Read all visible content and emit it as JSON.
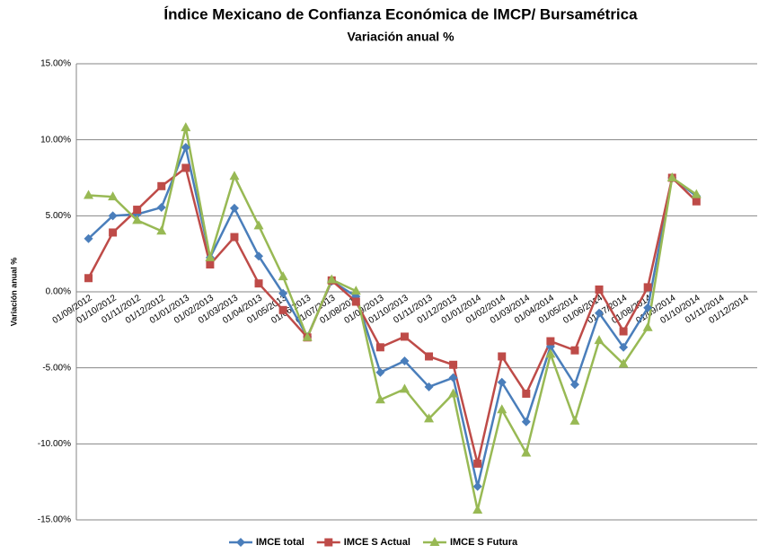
{
  "chart_data": {
    "type": "line",
    "title": "Índice Mexicano de Confianza Económica de lMCP/ Bursamétrica",
    "subtitle": "Variación anual %",
    "y_label": "Variación anual %",
    "categories": [
      "01/09/2012",
      "01/10/2012",
      "01/11/2012",
      "01/12/2012",
      "01/01/2013",
      "01/02/2013",
      "01/03/2013",
      "01/04/2013",
      "01/05/2013",
      "01/06/2013",
      "01/07/2013",
      "01/08/2013",
      "01/09/2013",
      "01/10/2013",
      "01/11/2013",
      "01/12/2013",
      "01/01/2014",
      "01/02/2014",
      "01/03/2014",
      "01/04/2014",
      "01/05/2014",
      "01/06/2014",
      "01/07/2014",
      "01/08/2014",
      "01/09/2014",
      "01/10/2014",
      "01/11/2014",
      "01/12/2014"
    ],
    "series": [
      {
        "name": "IMCE total",
        "color": "#4a7ebb",
        "marker": "diamond",
        "values": [
          3.5,
          5.0,
          5.1,
          5.55,
          9.5,
          2.25,
          5.5,
          2.35,
          -0.1,
          -2.95,
          0.7,
          -0.3,
          -5.3,
          -4.55,
          -6.25,
          -5.65,
          -12.8,
          -5.95,
          -8.55,
          -3.6,
          -6.1,
          -1.4,
          -3.65,
          -1.05,
          7.5,
          6.3,
          null,
          null
        ]
      },
      {
        "name": "IMCE S Actual",
        "color": "#be4b48",
        "marker": "square",
        "values": [
          0.9,
          3.9,
          5.4,
          6.95,
          8.15,
          1.8,
          3.6,
          0.55,
          -1.2,
          -3.0,
          0.75,
          -0.65,
          -3.65,
          -2.95,
          -4.25,
          -4.8,
          -11.3,
          -4.25,
          -6.7,
          -3.25,
          -3.85,
          0.15,
          -2.6,
          0.3,
          7.5,
          5.95,
          null,
          null
        ]
      },
      {
        "name": "IMCE S Futura",
        "color": "#98b954",
        "marker": "triangle",
        "values": [
          6.35,
          6.25,
          4.7,
          4.0,
          10.8,
          2.25,
          7.6,
          4.35,
          1.0,
          -3.0,
          0.8,
          0.05,
          -7.1,
          -6.4,
          -8.35,
          -6.7,
          -14.35,
          -7.75,
          -10.6,
          -4.1,
          -8.5,
          -3.2,
          -4.75,
          -2.35,
          7.5,
          6.4,
          null,
          null
        ]
      }
    ],
    "ylim": [
      -15,
      15
    ],
    "yticks": [
      {
        "value": -15,
        "label": "-15.00%"
      },
      {
        "value": -10,
        "label": "-10.00%"
      },
      {
        "value": -5,
        "label": "-5.00%"
      },
      {
        "value": 0,
        "label": "0.00%"
      },
      {
        "value": 5,
        "label": "5.00%"
      },
      {
        "value": 10,
        "label": "10.00%"
      },
      {
        "value": 15,
        "label": "15.00%"
      }
    ],
    "grid": true,
    "legend": "bottom"
  }
}
